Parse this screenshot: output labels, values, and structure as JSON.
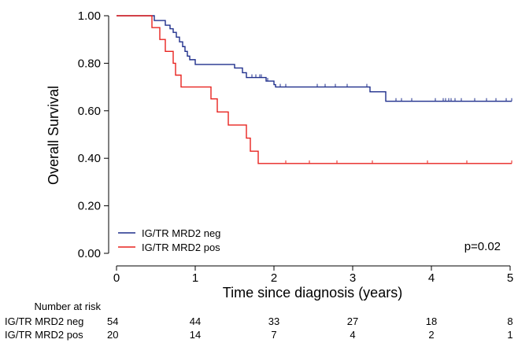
{
  "chart_data": {
    "type": "line",
    "subtype": "kaplan-meier step",
    "ylabel": "Overall Survival",
    "xlabel": "Time since diagnosis (years)",
    "xlim": [
      0,
      5
    ],
    "ylim": [
      0,
      1
    ],
    "x_ticks": [
      0,
      1,
      2,
      3,
      4,
      5
    ],
    "y_ticks": [
      "0.00",
      "0.20",
      "0.40",
      "0.60",
      "0.80",
      "1.00"
    ],
    "y_tick_values": [
      0,
      0.2,
      0.4,
      0.6,
      0.8,
      1.0
    ],
    "grid": false,
    "legend_position": "bottom-left",
    "annotation": "p=0.02",
    "series": [
      {
        "name": "IG/TR MRD2 neg",
        "color": "#1f2f8c",
        "steps": [
          [
            0,
            1.0
          ],
          [
            0.48,
            0.98
          ],
          [
            0.62,
            0.96
          ],
          [
            0.68,
            0.945
          ],
          [
            0.72,
            0.93
          ],
          [
            0.76,
            0.91
          ],
          [
            0.8,
            0.89
          ],
          [
            0.84,
            0.87
          ],
          [
            0.87,
            0.85
          ],
          [
            0.9,
            0.83
          ],
          [
            0.93,
            0.815
          ],
          [
            1.0,
            0.795
          ],
          [
            1.5,
            0.78
          ],
          [
            1.6,
            0.76
          ],
          [
            1.65,
            0.74
          ],
          [
            1.9,
            0.725
          ],
          [
            2.0,
            0.71
          ],
          [
            2.02,
            0.7
          ],
          [
            3.22,
            0.68
          ],
          [
            3.42,
            0.64
          ]
        ],
        "end": 5.02,
        "censors": [
          1.72,
          1.77,
          1.82,
          1.84,
          1.92,
          2.08,
          2.15,
          2.55,
          2.65,
          2.78,
          2.93,
          3.18,
          3.55,
          3.62,
          3.75,
          4.05,
          4.15,
          4.18,
          4.22,
          4.25,
          4.3,
          4.38,
          4.55,
          4.7,
          4.82,
          4.95,
          5.02
        ]
      },
      {
        "name": "IG/TR MRD2 pos",
        "color": "#e8231f",
        "steps": [
          [
            0,
            1.0
          ],
          [
            0.45,
            0.95
          ],
          [
            0.55,
            0.9
          ],
          [
            0.62,
            0.85
          ],
          [
            0.72,
            0.8
          ],
          [
            0.75,
            0.75
          ],
          [
            0.82,
            0.7
          ],
          [
            1.2,
            0.65
          ],
          [
            1.28,
            0.595
          ],
          [
            1.42,
            0.54
          ],
          [
            1.65,
            0.485
          ],
          [
            1.7,
            0.43
          ],
          [
            1.8,
            0.378
          ]
        ],
        "end": 5.02,
        "censors": [
          2.15,
          2.45,
          2.8,
          3.25,
          3.95,
          4.45,
          5.02
        ]
      }
    ],
    "risk_table": {
      "title": "Number at risk",
      "rows": [
        {
          "label": "IG/TR MRD2 neg",
          "counts": [
            "54",
            "44",
            "33",
            "27",
            "18",
            "8"
          ]
        },
        {
          "label": "IG/TR MRD2 pos",
          "counts": [
            "20",
            "14",
            "7",
            "4",
            "2",
            "1"
          ]
        }
      ]
    }
  }
}
